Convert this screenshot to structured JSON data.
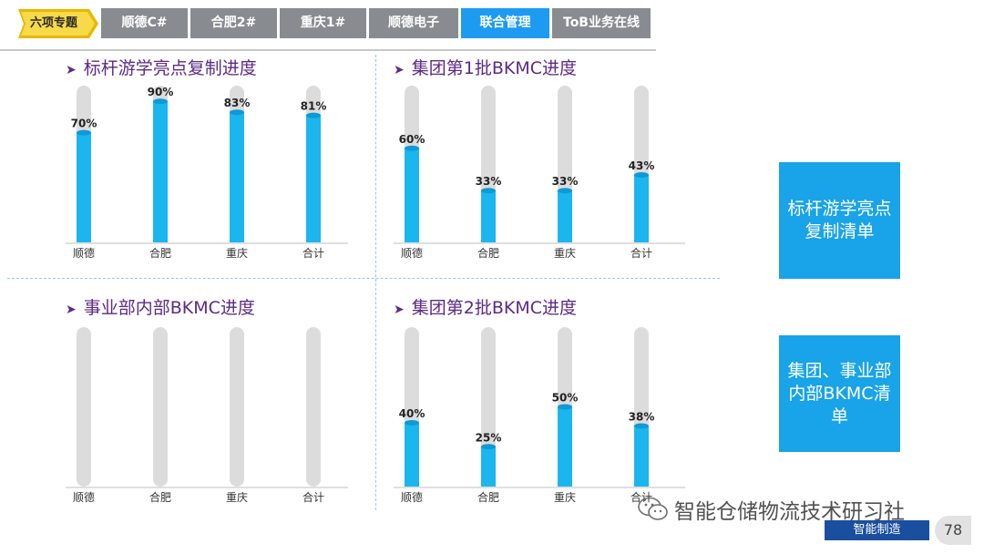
{
  "nav": {
    "badge_label": "六项专题",
    "tabs": [
      {
        "label": "顺德C#",
        "active": false
      },
      {
        "label": "合肥2#",
        "active": false
      },
      {
        "label": "重庆1#",
        "active": false
      },
      {
        "label": "顺德电子",
        "active": false
      },
      {
        "label": "联合管理",
        "active": true
      },
      {
        "label": "ToB业务在线",
        "active": false
      }
    ]
  },
  "chart_data": [
    {
      "type": "bar",
      "title": "标杆游学亮点复制进度",
      "categories": [
        "顺德",
        "合肥",
        "重庆",
        "合计"
      ],
      "values": [
        70,
        90,
        83,
        81
      ],
      "value_labels": [
        "70%",
        "90%",
        "83%",
        "81%"
      ],
      "ylim": [
        0,
        100
      ]
    },
    {
      "type": "bar",
      "title": "集团第1批BKMC进度",
      "categories": [
        "顺德",
        "合肥",
        "重庆",
        "合计"
      ],
      "values": [
        60,
        33,
        33,
        43
      ],
      "value_labels": [
        "60%",
        "33%",
        "33%",
        "43%"
      ],
      "ylim": [
        0,
        100
      ]
    },
    {
      "type": "bar",
      "title": "事业部内部BKMC进度",
      "categories": [
        "顺德",
        "合肥",
        "重庆",
        "合计"
      ],
      "values": [
        0,
        0,
        0,
        0
      ],
      "value_labels": [
        "",
        "",
        "",
        ""
      ],
      "ylim": [
        0,
        100
      ]
    },
    {
      "type": "bar",
      "title": "集团第2批BKMC进度",
      "categories": [
        "顺德",
        "合肥",
        "重庆",
        "合计"
      ],
      "values": [
        40,
        25,
        50,
        38
      ],
      "value_labels": [
        "40%",
        "25%",
        "50%",
        "38%"
      ],
      "ylim": [
        0,
        100
      ]
    }
  ],
  "side_boxes": [
    {
      "text": "标杆游学亮点复制清单"
    },
    {
      "text": "集团、事业部内部BKMC清单"
    }
  ],
  "footer": {
    "label": "智能制造",
    "page_number": "78",
    "watermark": "智能仓储物流技术研习社"
  },
  "colors": {
    "bar_fill": "#1bb6ee",
    "track": "#dcdcdc",
    "title": "#5b2a86",
    "accent": "#19a3e8"
  }
}
